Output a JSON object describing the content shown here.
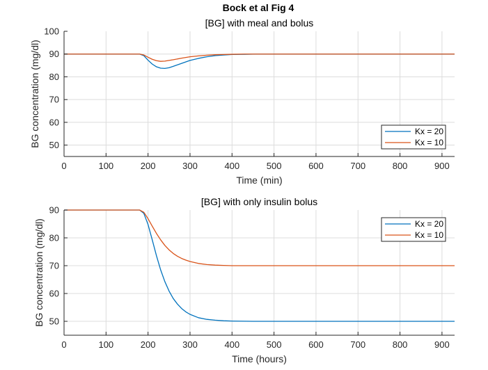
{
  "figure_title": "Bock et al Fig 4",
  "chart_data": [
    {
      "type": "line",
      "title": "[BG] with meal and bolus",
      "xlabel": "Time (min)",
      "ylabel": "BG concentration (mg/dl)",
      "xlim": [
        0,
        930
      ],
      "ylim": [
        45,
        100
      ],
      "xticks": [
        0,
        100,
        200,
        300,
        400,
        500,
        600,
        700,
        800,
        900
      ],
      "yticks": [
        50,
        60,
        70,
        80,
        90,
        100
      ],
      "grid": true,
      "legend_position": "bottom-right",
      "series": [
        {
          "name": "Kx = 20",
          "color": "#0072BD",
          "x": [
            0,
            180,
            190,
            200,
            210,
            220,
            230,
            240,
            250,
            260,
            280,
            300,
            320,
            340,
            360,
            380,
            400,
            430,
            460,
            500,
            600,
            930
          ],
          "y": [
            90,
            90,
            89.3,
            87.3,
            85.6,
            84.4,
            83.8,
            83.7,
            84.0,
            84.6,
            85.9,
            87.2,
            88.1,
            88.8,
            89.3,
            89.6,
            89.8,
            89.9,
            90,
            90,
            90,
            90
          ]
        },
        {
          "name": "Kx = 10",
          "color": "#D95319",
          "x": [
            0,
            180,
            190,
            200,
            210,
            220,
            230,
            240,
            250,
            260,
            280,
            300,
            320,
            340,
            360,
            380,
            400,
            430,
            460,
            500,
            600,
            930
          ],
          "y": [
            90,
            90,
            89.6,
            88.6,
            87.7,
            87.1,
            86.8,
            86.9,
            87.2,
            87.5,
            88.2,
            88.8,
            89.2,
            89.5,
            89.7,
            89.8,
            89.9,
            90,
            90,
            90,
            90,
            90
          ]
        }
      ]
    },
    {
      "type": "line",
      "title": "[BG] with only insulin bolus",
      "xlabel": "Time (hours)",
      "ylabel": "BG concentration (mg/dl)",
      "xlim": [
        0,
        930
      ],
      "ylim": [
        45,
        90
      ],
      "xticks": [
        0,
        100,
        200,
        300,
        400,
        500,
        600,
        700,
        800,
        900
      ],
      "yticks": [
        50,
        60,
        70,
        80,
        90
      ],
      "grid": true,
      "legend_position": "top-right",
      "series": [
        {
          "name": "Kx = 20",
          "color": "#0072BD",
          "x": [
            0,
            180,
            190,
            200,
            210,
            220,
            230,
            240,
            250,
            260,
            270,
            280,
            290,
            300,
            320,
            340,
            360,
            380,
            400,
            450,
            500,
            600,
            930
          ],
          "y": [
            90,
            90,
            88.8,
            84.8,
            79.3,
            73.6,
            68.5,
            64.3,
            60.9,
            58.2,
            56.2,
            54.6,
            53.4,
            52.5,
            51.3,
            50.7,
            50.4,
            50.2,
            50.1,
            50,
            50,
            50,
            50
          ]
        },
        {
          "name": "Kx = 10",
          "color": "#D95319",
          "x": [
            0,
            180,
            190,
            200,
            210,
            220,
            230,
            240,
            250,
            260,
            270,
            280,
            290,
            300,
            320,
            340,
            360,
            380,
            400,
            450,
            500,
            600,
            930
          ],
          "y": [
            90,
            90,
            89.2,
            86.9,
            84.2,
            81.6,
            79.3,
            77.3,
            75.7,
            74.4,
            73.4,
            72.6,
            72.0,
            71.5,
            70.8,
            70.4,
            70.2,
            70.1,
            70.0,
            70,
            70,
            70,
            70
          ]
        }
      ]
    }
  ]
}
